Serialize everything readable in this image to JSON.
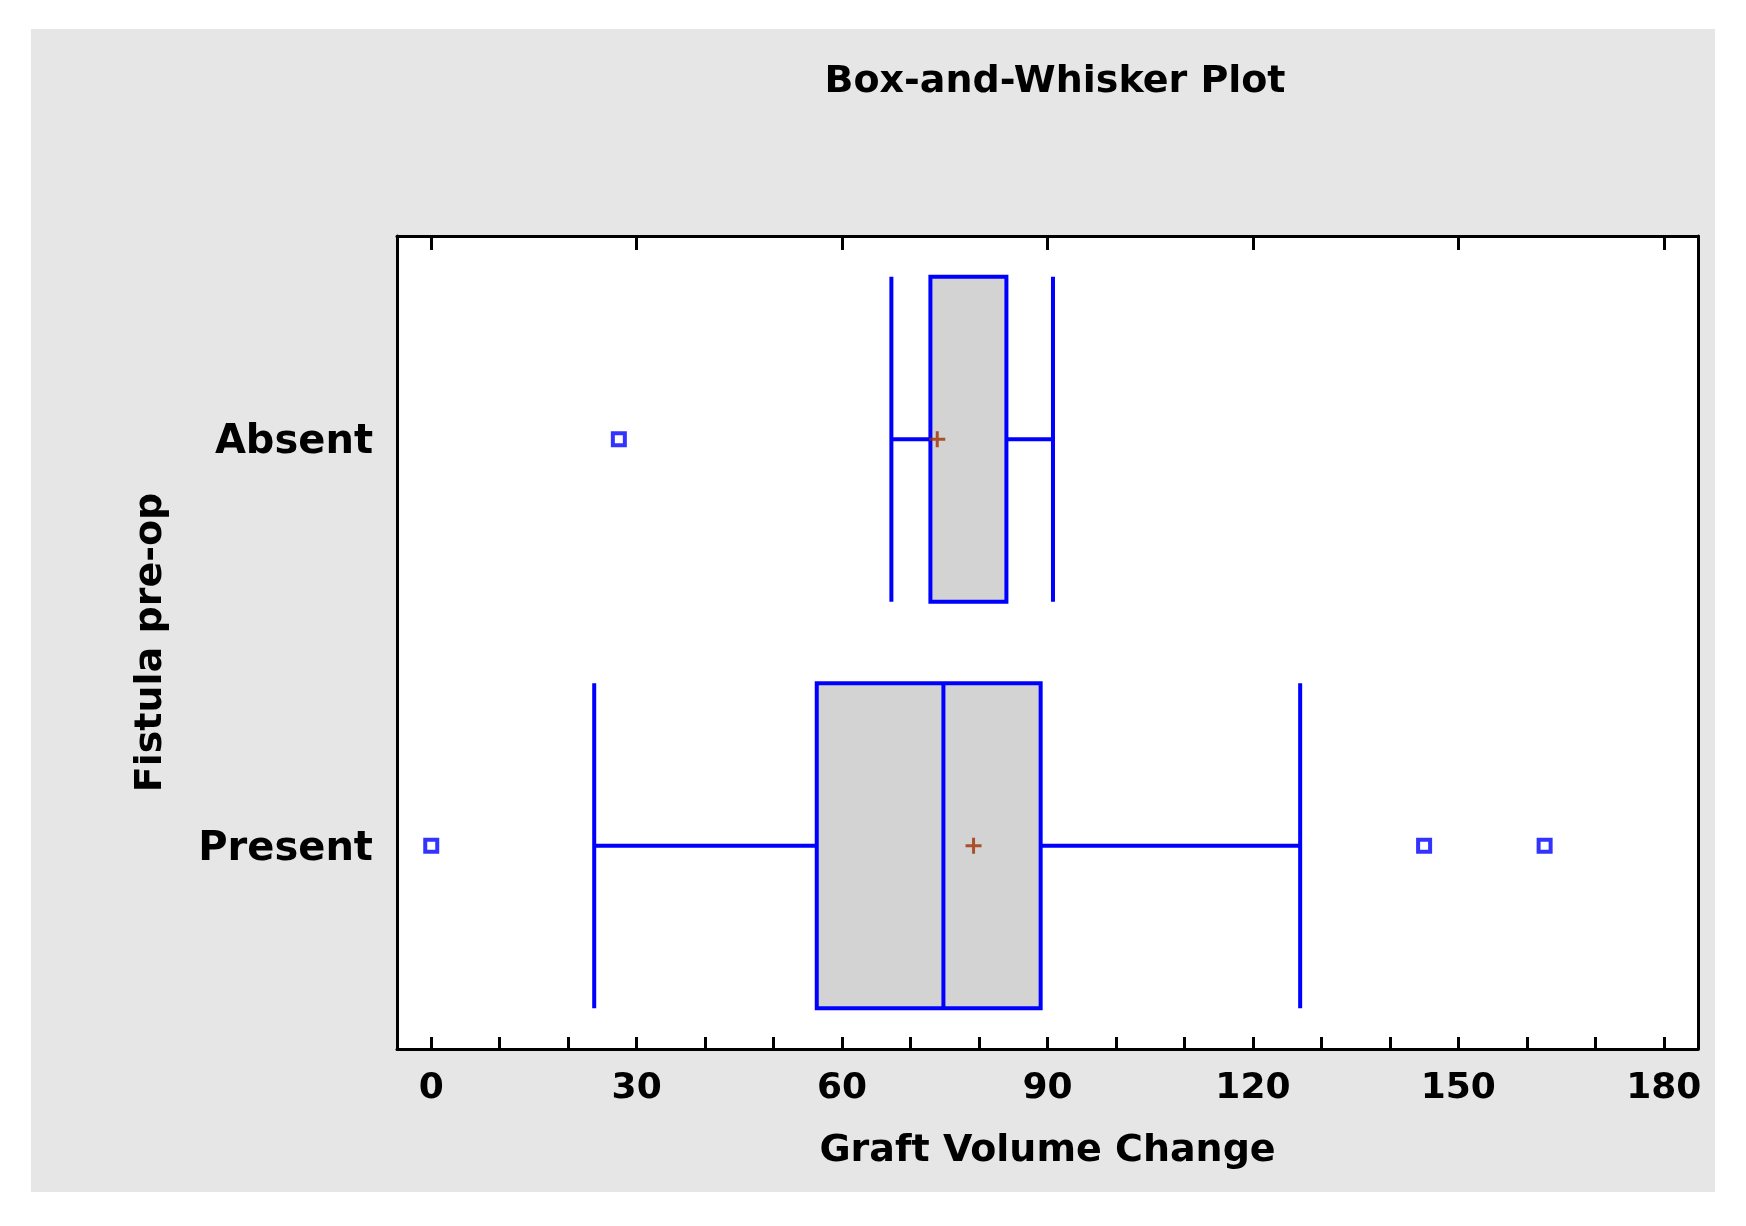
{
  "chart_data": {
    "type": "box",
    "title": "Box-and-Whisker Plot",
    "xlabel": "Graft Volume Change",
    "ylabel": "Fistula pre-op",
    "orientation": "horizontal",
    "categories": [
      "Absent",
      "Present"
    ],
    "series": [
      {
        "color": "#0000ff",
        "boxes": [
          {
            "low": 67.2,
            "q1": 72.9,
            "median": 72.9,
            "q3": 84.0,
            "high": 90.8,
            "mean": 73.9,
            "outliers": [
              27.4
            ]
          },
          {
            "low": 23.8,
            "q1": 56.3,
            "median": 74.8,
            "q3": 89.0,
            "high": 126.9,
            "mean": 79.2,
            "outliers": [
              0,
              145,
              162.6
            ]
          }
        ]
      }
    ],
    "xlim": [
      -5,
      185
    ],
    "xticks": [
      0,
      {
        "value": 10,
        "label": null
      },
      {
        "value": 20,
        "label": null
      },
      30,
      {
        "value": 40,
        "label": null
      },
      {
        "value": 50,
        "label": null
      },
      60,
      {
        "value": 70,
        "label": null
      },
      {
        "value": 80,
        "label": null
      },
      90,
      {
        "value": 100,
        "label": null
      },
      {
        "value": 110,
        "label": null
      },
      120,
      {
        "value": 130,
        "label": null
      },
      {
        "value": 140,
        "label": null
      },
      150,
      {
        "value": 160,
        "label": null
      },
      {
        "value": 170,
        "label": null
      },
      180
    ],
    "marker": "square",
    "grid": false
  }
}
